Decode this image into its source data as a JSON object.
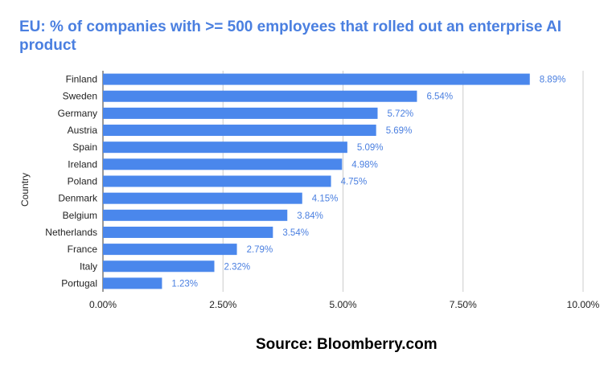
{
  "chart_data": {
    "type": "bar",
    "orientation": "horizontal",
    "title": "EU: % of companies with >= 500 employees that rolled out an enterprise AI product",
    "xlabel": "",
    "ylabel": "Country",
    "categories": [
      "Finland",
      "Sweden",
      "Germany",
      "Austria",
      "Spain",
      "Ireland",
      "Poland",
      "Denmark",
      "Belgium",
      "Netherlands",
      "France",
      "Italy",
      "Portugal"
    ],
    "values": [
      8.89,
      6.54,
      5.72,
      5.69,
      5.09,
      4.98,
      4.75,
      4.15,
      3.84,
      3.54,
      2.79,
      2.32,
      1.23
    ],
    "value_labels": [
      "8.89%",
      "6.54%",
      "5.72%",
      "5.69%",
      "5.09%",
      "4.98%",
      "4.75%",
      "4.15%",
      "3.84%",
      "3.54%",
      "2.79%",
      "2.32%",
      "1.23%"
    ],
    "xlim": [
      0,
      10
    ],
    "xticks": [
      0,
      2.5,
      5,
      7.5,
      10
    ],
    "xtick_labels": [
      "0.00%",
      "2.50%",
      "5.00%",
      "7.50%",
      "10.00%"
    ],
    "grid": true,
    "legend": "none"
  },
  "source": "Source: Bloomberry.com",
  "colors": {
    "bar": "#4a87ec",
    "title": "#4a7fe0",
    "value_label": "#4a7fe0",
    "grid": "#cccccc",
    "axis": "#333333"
  }
}
